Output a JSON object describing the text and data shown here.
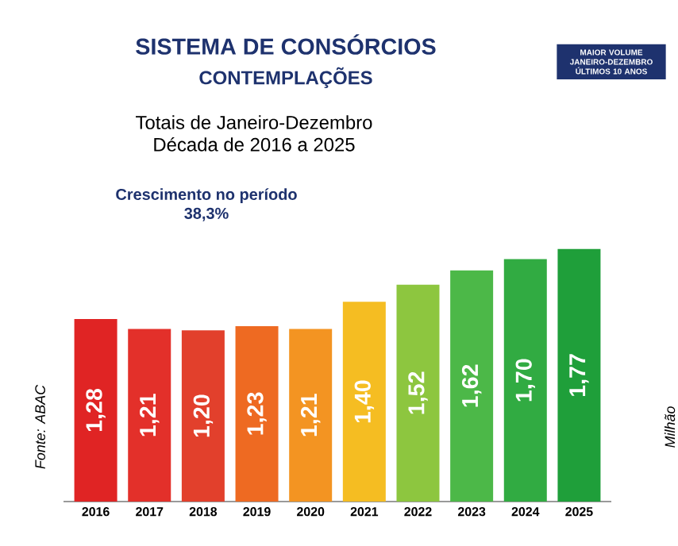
{
  "chart_data": {
    "type": "bar",
    "title": "SISTEMA DE CONSÓRCIOS",
    "subtitle": "CONTEMPLAÇÕES",
    "ylabel": "Milhão",
    "annotations": [
      "Totais de Janeiro-Dezembro",
      "Década de 2016 a 2025",
      "**Crescimento no período**",
      "**38,3%**",
      "Fonte: ABAC",
      "MAIOR VOLUME JANEIRO-DEZEMBRO ÚLTIMOS 10 ANOS"
    ],
    "categories": [
      "2016",
      "2017",
      "2018",
      "2019",
      "2020",
      "2021",
      "2022",
      "2023",
      "2024",
      "2025"
    ],
    "values": [
      1.28,
      1.21,
      1.2,
      1.23,
      1.21,
      1.4,
      1.52,
      1.62,
      1.7,
      1.77
    ],
    "value_labels": [
      "1,28",
      "1,21",
      "1,20",
      "1,23",
      "1,21",
      "1,40",
      "1,52",
      "1,62",
      "1,70",
      "1,77"
    ],
    "colors": [
      "#e02424",
      "#e3302a",
      "#e2402c",
      "#ee6a22",
      "#f39422",
      "#f5bd22",
      "#8dc63f",
      "#4cb848",
      "#31ab42",
      "#1f9f3a"
    ]
  }
}
